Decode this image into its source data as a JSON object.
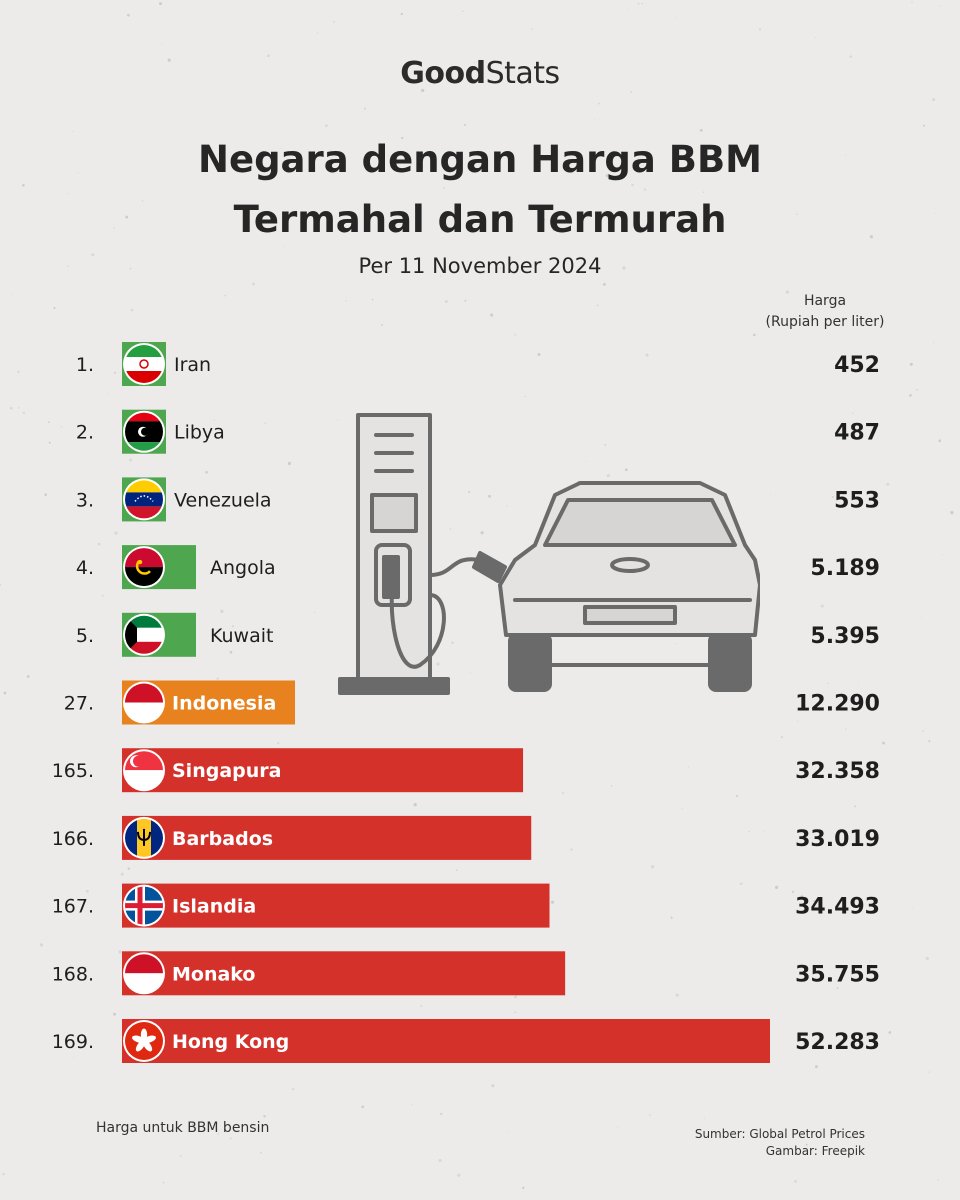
{
  "brand": {
    "part1": "Good",
    "part2": "Stats"
  },
  "header": {
    "title_line1": "Negara dengan Harga BBM",
    "title_line2": "Termahal dan Termurah",
    "subtitle": "Per 11 November 2024",
    "value_header_line1": "Harga",
    "value_header_line2": "(Rupiah per liter)"
  },
  "footer": {
    "note": "Harga untuk BBM bensin",
    "source": "Sumber: Global Petrol Prices",
    "image_credit": "Gambar: Freepik"
  },
  "colors": {
    "cheap": "#4ea64e",
    "indonesia": "#e8821e",
    "expensive": "#d4312b",
    "text": "#1e1e1e"
  },
  "chart_data": {
    "type": "bar",
    "orientation": "horizontal",
    "value_unit": "Rupiah per liter",
    "categories": [
      "Iran",
      "Libya",
      "Venezuela",
      "Angola",
      "Kuwait",
      "Indonesia",
      "Singapura",
      "Barbados",
      "Islandia",
      "Monako",
      "Hong Kong"
    ],
    "ranks": [
      "1.",
      "2.",
      "3.",
      "4.",
      "5.",
      "27.",
      "165.",
      "166.",
      "167.",
      "168.",
      "169."
    ],
    "values": [
      452,
      487,
      553,
      5189,
      5395,
      12290,
      32358,
      33019,
      34493,
      35755,
      52283
    ],
    "value_labels": [
      "452",
      "487",
      "553",
      "5.189",
      "5.395",
      "12.290",
      "32.358",
      "33.019",
      "34.493",
      "35.755",
      "52.283"
    ],
    "groups": [
      "cheap",
      "cheap",
      "cheap",
      "cheap",
      "cheap",
      "indonesia",
      "expensive",
      "expensive",
      "expensive",
      "expensive",
      "expensive"
    ],
    "flags": [
      "iran-flag",
      "libya-flag",
      "venezuela-flag",
      "angola-flag",
      "kuwait-flag",
      "indonesia-flag",
      "singapore-flag",
      "barbados-flag",
      "iceland-flag",
      "monaco-flag",
      "hong-kong-flag"
    ],
    "xlim": [
      0,
      52283
    ],
    "grid": false,
    "legend": "none"
  }
}
